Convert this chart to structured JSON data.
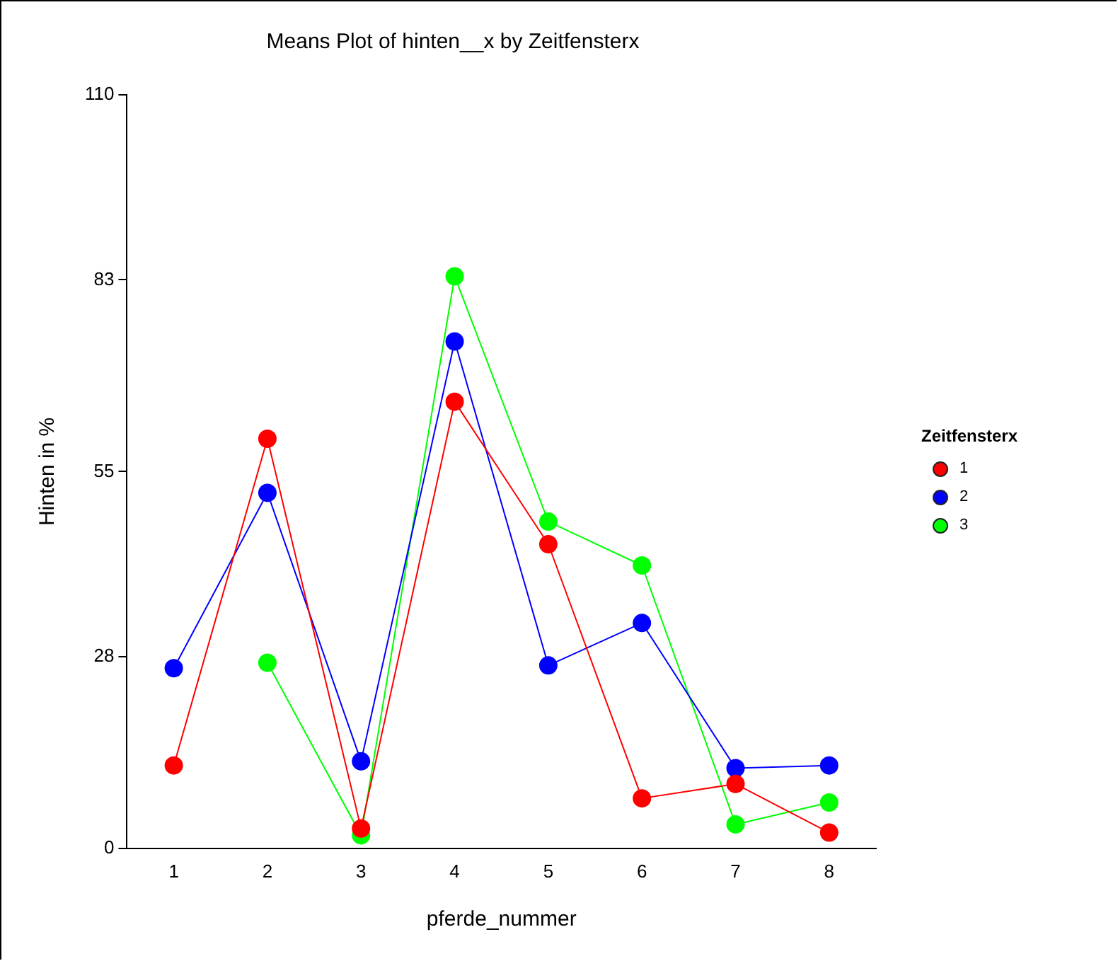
{
  "chart_data": {
    "type": "line",
    "title": "Means Plot of hinten__x by Zeitfensterx",
    "xlabel": "pferde_nummer",
    "ylabel": "Hinten in %",
    "legend_title": "Zeitfensterx",
    "x": [
      1,
      2,
      3,
      4,
      5,
      6,
      7,
      8
    ],
    "series": [
      {
        "name": "1",
        "color": "#ff0000",
        "values": [
          12.1,
          59.8,
          2.9,
          65.2,
          44.4,
          7.3,
          9.4,
          2.3
        ]
      },
      {
        "name": "2",
        "color": "#0000ff",
        "values": [
          26.3,
          51.9,
          12.7,
          74.0,
          26.7,
          32.9,
          11.7,
          12.1
        ]
      },
      {
        "name": "3",
        "color": "#00ff00",
        "values": [
          null,
          27.1,
          1.9,
          83.5,
          47.7,
          41.3,
          3.5,
          6.7
        ]
      }
    ],
    "xlim": [
      0.5,
      8.5
    ],
    "xticks": [
      1,
      2,
      3,
      4,
      5,
      6,
      7,
      8
    ],
    "ylim": [
      0,
      110
    ],
    "yticks": [
      0,
      28,
      55,
      83,
      110
    ],
    "grid": false,
    "legend": "right",
    "marker": "circle",
    "line_style": "solid"
  }
}
